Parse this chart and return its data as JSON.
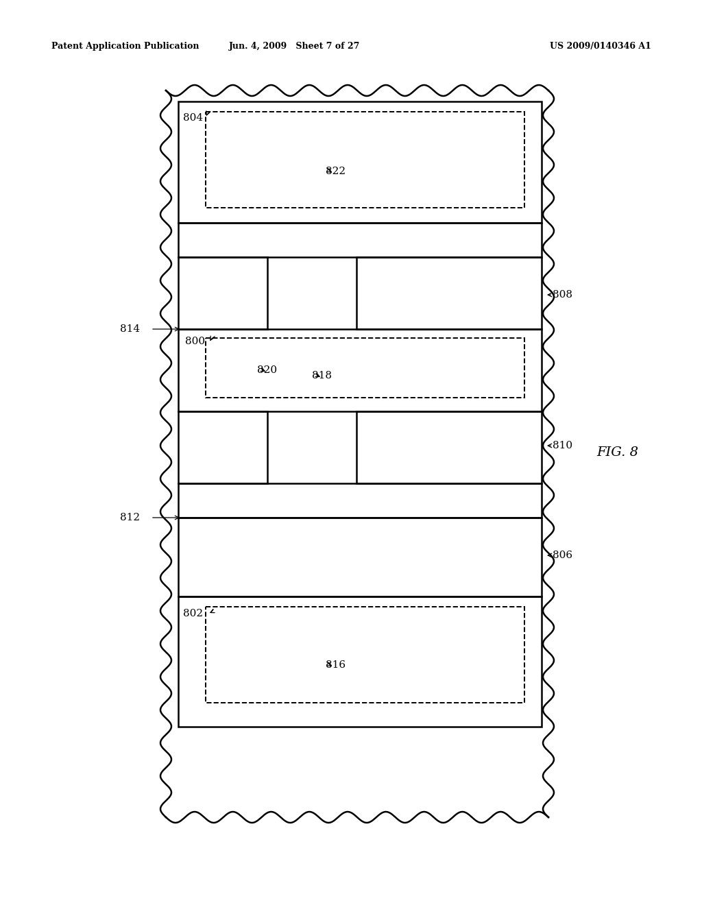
{
  "header_left": "Patent Application Publication",
  "header_center": "Jun. 4, 2009   Sheet 7 of 27",
  "header_right": "US 2009/0140346 A1",
  "fig_label": "FIG. 8",
  "bg_color": "#ffffff",
  "line_color": "#000000"
}
